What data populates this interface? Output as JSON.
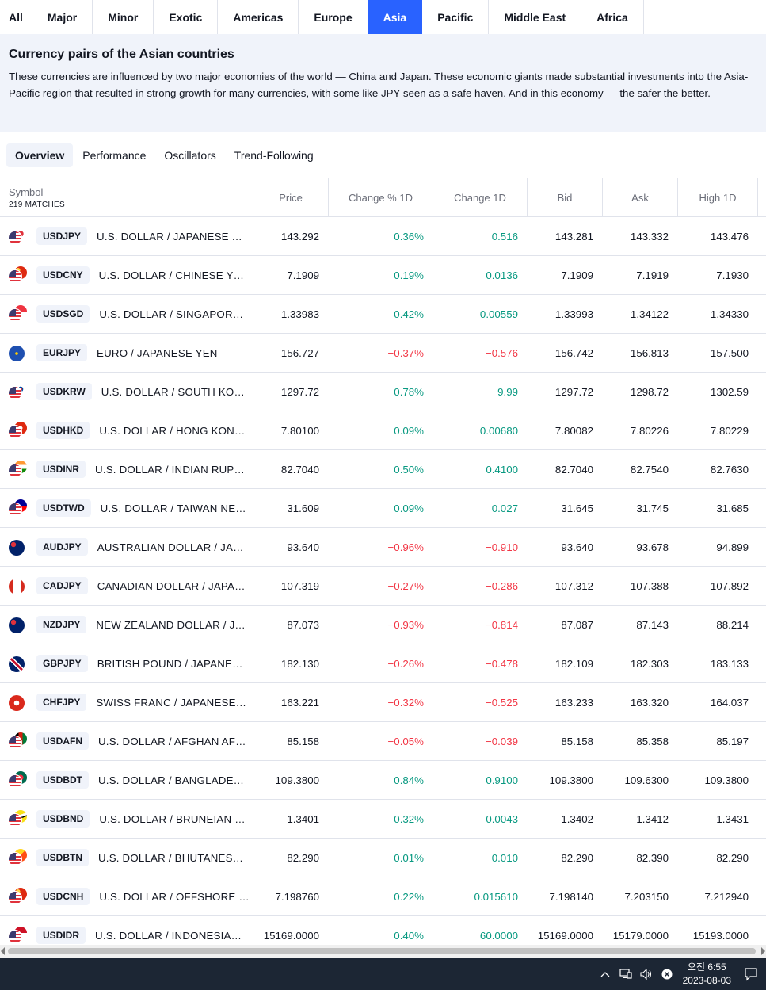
{
  "region_tabs": [
    {
      "label": "All"
    },
    {
      "label": "Major"
    },
    {
      "label": "Minor"
    },
    {
      "label": "Exotic"
    },
    {
      "label": "Americas"
    },
    {
      "label": "Europe"
    },
    {
      "label": "Asia",
      "active": true
    },
    {
      "label": "Pacific"
    },
    {
      "label": "Middle East"
    },
    {
      "label": "Africa"
    }
  ],
  "info": {
    "title": "Currency pairs of the Asian countries",
    "text": "These currencies are influenced by two major economies of the world — China and Japan. These economic giants made substantial investments into the Asia-Pacific region that resulted in strong growth for many currencies, with some like JPY seen as a safe haven. And in this economy — the safer the better."
  },
  "view_tabs": [
    {
      "label": "Overview",
      "active": true
    },
    {
      "label": "Performance"
    },
    {
      "label": "Oscillators"
    },
    {
      "label": "Trend-Following"
    }
  ],
  "table": {
    "symbol_header": "Symbol",
    "matches": "219 MATCHES",
    "columns": [
      "Price",
      "Change % 1D",
      "Change 1D",
      "Bid",
      "Ask",
      "High 1D"
    ],
    "rows": [
      {
        "ticker": "USDJPY",
        "desc": "U.S. DOLLAR / JAPANESE YEN",
        "price": "143.292",
        "chp": "0.36%",
        "ch": "0.516",
        "bid": "143.281",
        "ask": "143.332",
        "high": "143.476",
        "dir": "pos",
        "base": "us",
        "quote": "jp"
      },
      {
        "ticker": "USDCNY",
        "desc": "U.S. DOLLAR / CHINESE YUAN",
        "price": "7.1909",
        "chp": "0.19%",
        "ch": "0.0136",
        "bid": "7.1909",
        "ask": "7.1919",
        "high": "7.1930",
        "dir": "pos",
        "base": "us",
        "quote": "cn"
      },
      {
        "ticker": "USDSGD",
        "desc": "U.S. DOLLAR / SINGAPORE D...",
        "price": "1.33983",
        "chp": "0.42%",
        "ch": "0.00559",
        "bid": "1.33993",
        "ask": "1.34122",
        "high": "1.34330",
        "dir": "pos",
        "base": "us",
        "quote": "sg"
      },
      {
        "ticker": "EURJPY",
        "desc": "EURO / JAPANESE YEN",
        "price": "156.727",
        "chp": "−0.37%",
        "ch": "−0.576",
        "bid": "156.742",
        "ask": "156.813",
        "high": "157.500",
        "dir": "neg",
        "base": "eu",
        "quote": "none"
      },
      {
        "ticker": "USDKRW",
        "desc": "U.S. DOLLAR / SOUTH KORE...",
        "price": "1297.72",
        "chp": "0.78%",
        "ch": "9.99",
        "bid": "1297.72",
        "ask": "1298.72",
        "high": "1302.59",
        "dir": "pos",
        "base": "us",
        "quote": "kr"
      },
      {
        "ticker": "USDHKD",
        "desc": "U.S. DOLLAR / HONG KONG ...",
        "price": "7.80100",
        "chp": "0.09%",
        "ch": "0.00680",
        "bid": "7.80082",
        "ask": "7.80226",
        "high": "7.80229",
        "dir": "pos",
        "base": "us",
        "quote": "hk"
      },
      {
        "ticker": "USDINR",
        "desc": "U.S. DOLLAR / INDIAN RUPEE",
        "price": "82.7040",
        "chp": "0.50%",
        "ch": "0.4100",
        "bid": "82.7040",
        "ask": "82.7540",
        "high": "82.7630",
        "dir": "pos",
        "base": "us",
        "quote": "in"
      },
      {
        "ticker": "USDTWD",
        "desc": "U.S. DOLLAR / TAIWAN NEW...",
        "price": "31.609",
        "chp": "0.09%",
        "ch": "0.027",
        "bid": "31.645",
        "ask": "31.745",
        "high": "31.685",
        "dir": "pos",
        "base": "us",
        "quote": "tw"
      },
      {
        "ticker": "AUDJPY",
        "desc": "AUSTRALIAN DOLLAR / JAPA...",
        "price": "93.640",
        "chp": "−0.96%",
        "ch": "−0.910",
        "bid": "93.640",
        "ask": "93.678",
        "high": "94.899",
        "dir": "neg",
        "base": "au",
        "quote": "none"
      },
      {
        "ticker": "CADJPY",
        "desc": "CANADIAN DOLLAR / JAPANE...",
        "price": "107.319",
        "chp": "−0.27%",
        "ch": "−0.286",
        "bid": "107.312",
        "ask": "107.388",
        "high": "107.892",
        "dir": "neg",
        "base": "ca",
        "quote": "none"
      },
      {
        "ticker": "NZDJPY",
        "desc": "NEW ZEALAND DOLLAR / JA...",
        "price": "87.073",
        "chp": "−0.93%",
        "ch": "−0.814",
        "bid": "87.087",
        "ask": "87.143",
        "high": "88.214",
        "dir": "neg",
        "base": "nz",
        "quote": "none"
      },
      {
        "ticker": "GBPJPY",
        "desc": "BRITISH POUND / JAPANESE ...",
        "price": "182.130",
        "chp": "−0.26%",
        "ch": "−0.478",
        "bid": "182.109",
        "ask": "182.303",
        "high": "183.133",
        "dir": "neg",
        "base": "gb",
        "quote": "none"
      },
      {
        "ticker": "CHFJPY",
        "desc": "SWISS FRANC / JAPANESE YEN",
        "price": "163.221",
        "chp": "−0.32%",
        "ch": "−0.525",
        "bid": "163.233",
        "ask": "163.320",
        "high": "164.037",
        "dir": "neg",
        "base": "ch",
        "quote": "none"
      },
      {
        "ticker": "USDAFN",
        "desc": "U.S. DOLLAR / AFGHAN AFG...",
        "price": "85.158",
        "chp": "−0.05%",
        "ch": "−0.039",
        "bid": "85.158",
        "ask": "85.358",
        "high": "85.197",
        "dir": "neg",
        "base": "us",
        "quote": "af"
      },
      {
        "ticker": "USDBDT",
        "desc": "U.S. DOLLAR / BANGLADESH...",
        "price": "109.3800",
        "chp": "0.84%",
        "ch": "0.9100",
        "bid": "109.3800",
        "ask": "109.6300",
        "high": "109.3800",
        "dir": "pos",
        "base": "us",
        "quote": "bd"
      },
      {
        "ticker": "USDBND",
        "desc": "U.S. DOLLAR / BRUNEIAN D...",
        "price": "1.3401",
        "chp": "0.32%",
        "ch": "0.0043",
        "bid": "1.3402",
        "ask": "1.3412",
        "high": "1.3431",
        "dir": "pos",
        "base": "us",
        "quote": "bn"
      },
      {
        "ticker": "USDBTN",
        "desc": "U.S. DOLLAR / BHUTANESE ...",
        "price": "82.290",
        "chp": "0.01%",
        "ch": "0.010",
        "bid": "82.290",
        "ask": "82.390",
        "high": "82.290",
        "dir": "pos",
        "base": "us",
        "quote": "bt"
      },
      {
        "ticker": "USDCNH",
        "desc": "U.S. DOLLAR / OFFSHORE C...",
        "price": "7.198760",
        "chp": "0.22%",
        "ch": "0.015610",
        "bid": "7.198140",
        "ask": "7.203150",
        "high": "7.212940",
        "dir": "pos",
        "base": "us",
        "quote": "cn"
      },
      {
        "ticker": "USDIDR",
        "desc": "U.S. DOLLAR / INDONESIAN ...",
        "price": "15169.0000",
        "chp": "0.40%",
        "ch": "60.0000",
        "bid": "15169.0000",
        "ask": "15179.0000",
        "high": "15193.0000",
        "dir": "pos",
        "base": "us",
        "quote": "id"
      }
    ]
  },
  "colors": {
    "accent": "#2962ff",
    "positive": "#089981",
    "negative": "#f23645"
  },
  "taskbar": {
    "time": "오전 6:55",
    "date": "2023-08-03",
    "icons": [
      "chevron-up-icon",
      "network-icon",
      "volume-icon",
      "close-circle-icon",
      "notification-icon"
    ]
  }
}
